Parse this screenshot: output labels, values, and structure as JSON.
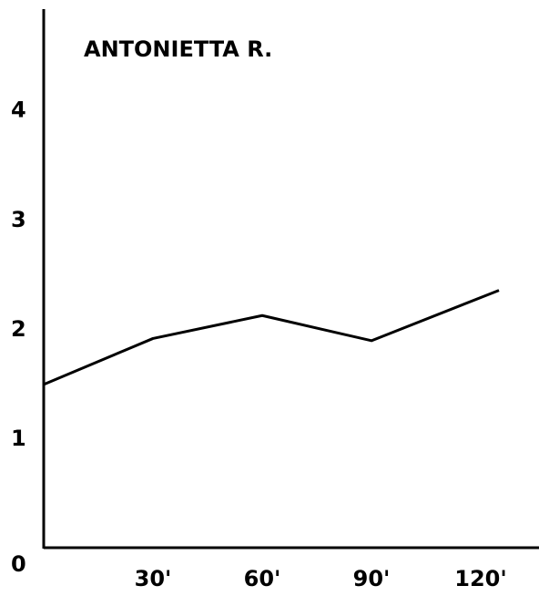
{
  "chart_data": {
    "type": "line",
    "title": "ANTONIETTA R.",
    "x": [
      0,
      30,
      60,
      90,
      125
    ],
    "series": [
      {
        "name": null,
        "color": "#000000",
        "values": [
          1.5,
          1.92,
          2.13,
          1.9,
          2.36
        ]
      }
    ],
    "xlim": [
      0,
      136
    ],
    "ylim": [
      0,
      4.93
    ],
    "xticks": [
      {
        "value": 30,
        "label": "30'"
      },
      {
        "value": 60,
        "label": "60'"
      },
      {
        "value": 90,
        "label": "90'"
      },
      {
        "value": 120,
        "label": "120'"
      }
    ],
    "yticks": [
      0,
      1,
      2,
      3,
      4
    ],
    "grid": false
  }
}
